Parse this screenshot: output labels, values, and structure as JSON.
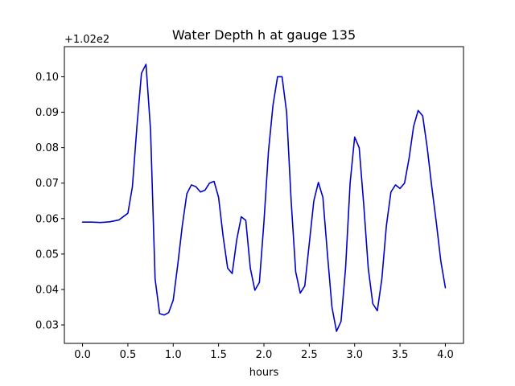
{
  "chart_data": {
    "type": "line",
    "title": "Water Depth h at gauge 135",
    "xlabel": "hours",
    "ylabel": "",
    "offset_label": "+1.02e2",
    "xlim": [
      -0.2,
      4.2
    ],
    "ylim": [
      0.0248,
      0.1085
    ],
    "grid": false,
    "x_ticks": [
      0.0,
      0.5,
      1.0,
      1.5,
      2.0,
      2.5,
      3.0,
      3.5,
      4.0
    ],
    "x_tick_labels": [
      "0.0",
      "0.5",
      "1.0",
      "1.5",
      "2.0",
      "2.5",
      "3.0",
      "3.5",
      "4.0"
    ],
    "y_ticks": [
      0.03,
      0.04,
      0.05,
      0.06,
      0.07,
      0.08,
      0.09,
      0.1
    ],
    "y_tick_labels": [
      "0.03",
      "0.04",
      "0.05",
      "0.06",
      "0.07",
      "0.08",
      "0.09",
      "0.10"
    ],
    "series": [
      {
        "color": "#0000cc",
        "x": [
          0.0,
          0.1,
          0.2,
          0.3,
          0.4,
          0.5,
          0.55,
          0.6,
          0.65,
          0.7,
          0.75,
          0.8,
          0.85,
          0.9,
          0.95,
          1.0,
          1.05,
          1.1,
          1.15,
          1.2,
          1.25,
          1.3,
          1.35,
          1.4,
          1.45,
          1.5,
          1.55,
          1.6,
          1.65,
          1.7,
          1.75,
          1.8,
          1.85,
          1.9,
          1.95,
          2.0,
          2.05,
          2.1,
          2.15,
          2.2,
          2.25,
          2.3,
          2.35,
          2.4,
          2.45,
          2.5,
          2.55,
          2.6,
          2.65,
          2.7,
          2.75,
          2.8,
          2.85,
          2.9,
          2.95,
          3.0,
          3.05,
          3.1,
          3.15,
          3.2,
          3.25,
          3.3,
          3.35,
          3.4,
          3.45,
          3.5,
          3.55,
          3.6,
          3.65,
          3.7,
          3.75,
          3.8,
          3.85,
          3.9,
          3.95,
          4.0
        ],
        "y": [
          0.059,
          0.059,
          0.0589,
          0.0591,
          0.0596,
          0.0615,
          0.069,
          0.086,
          0.101,
          0.1035,
          0.085,
          0.043,
          0.0332,
          0.0328,
          0.0335,
          0.037,
          0.047,
          0.058,
          0.067,
          0.0695,
          0.069,
          0.0675,
          0.068,
          0.07,
          0.0705,
          0.066,
          0.055,
          0.046,
          0.0445,
          0.054,
          0.0605,
          0.0595,
          0.046,
          0.0398,
          0.042,
          0.059,
          0.079,
          0.092,
          0.1,
          0.1,
          0.09,
          0.065,
          0.045,
          0.039,
          0.041,
          0.053,
          0.065,
          0.0702,
          0.066,
          0.05,
          0.035,
          0.0282,
          0.031,
          0.046,
          0.07,
          0.083,
          0.08,
          0.064,
          0.046,
          0.036,
          0.034,
          0.043,
          0.058,
          0.0675,
          0.0695,
          0.0685,
          0.07,
          0.077,
          0.086,
          0.0905,
          0.089,
          0.08,
          0.069,
          0.059,
          0.048,
          0.0405
        ]
      }
    ]
  }
}
